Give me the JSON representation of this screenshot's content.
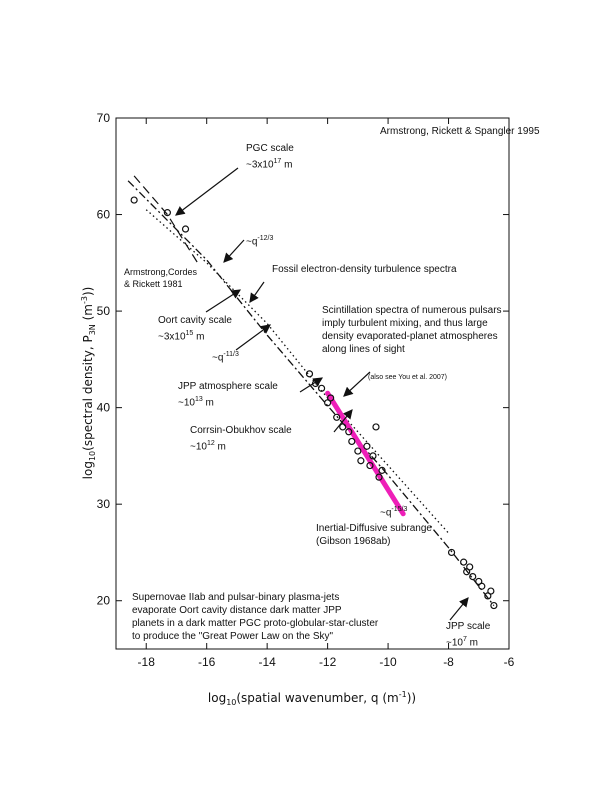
{
  "chart_data": {
    "type": "scatter",
    "title": "",
    "xlabel": "log10(spatial wavenumber, q (m^-1))",
    "ylabel": "log10(spectral density, P3N (m^-3))",
    "xlim": [
      -19,
      -6
    ],
    "ylim": [
      15,
      70
    ],
    "x_ticks": [
      -18,
      -16,
      -14,
      -12,
      -10,
      -8,
      -6
    ],
    "y_ticks": [
      20,
      30,
      40,
      50,
      60,
      70
    ],
    "grid": false,
    "series": [
      {
        "name": "",
        "style": "dash-dot",
        "x": [
          -18.6,
          -16,
          -14,
          -12,
          -10,
          -8,
          -6.5
        ],
        "y": [
          63.5,
          55.3,
          47.5,
          40.2,
          33.0,
          25.5,
          19.5
        ]
      },
      {
        "name": "",
        "style": "dotted",
        "x": [
          -18.0,
          -16,
          -14,
          -12,
          -10,
          -8
        ],
        "y": [
          60.5,
          55.0,
          48.7,
          41.0,
          34.0,
          27.0
        ]
      },
      {
        "name": "",
        "style": "dashed",
        "x": [
          -18.4,
          -17.3,
          -16.9,
          -16.3
        ],
        "y": [
          64.0,
          60.0,
          58.0,
          55.0
        ]
      },
      {
        "name": "",
        "style": "magenta",
        "x": [
          -12.0,
          -9.5
        ],
        "y": [
          41.5,
          29.0
        ]
      },
      {
        "name": "",
        "style": "points",
        "x": [
          -18.4,
          -17.3,
          -16.7,
          -12.6,
          -12.4,
          -12.2,
          -12.0,
          -11.9,
          -11.7,
          -11.5,
          -11.3,
          -11.2,
          -11.0,
          -10.9,
          -10.6,
          -10.5,
          -10.3,
          -10.4,
          -10.7,
          -10.2,
          -7.9,
          -7.5,
          -7.4,
          -7.3,
          -7.2,
          -7.0,
          -6.9,
          -6.7,
          -6.6,
          -6.5
        ],
        "y": [
          61.5,
          60.2,
          58.5,
          43.5,
          42.5,
          42.0,
          40.5,
          41.0,
          39.0,
          38.0,
          37.5,
          36.5,
          35.5,
          34.5,
          34.0,
          35.0,
          32.8,
          38.0,
          36.0,
          33.5,
          25.0,
          24.0,
          23.0,
          23.5,
          22.5,
          22.0,
          21.5,
          20.5,
          21.0,
          19.5
        ]
      }
    ],
    "annotations": {
      "source": "Armstrong, Rickett & Spangler 1995",
      "pgc_scale": {
        "label": "PGC scale",
        "value": "~3x10",
        "exp": "17",
        "unit": " m"
      },
      "q_m12_3": {
        "base": "~q",
        "exp": "-12/3"
      },
      "armstrong_1981": [
        "Armstrong,Cordes",
        "& Rickett 1981"
      ],
      "fossil": "Fossil electron-density turbulence spectra",
      "oort_scale": {
        "label": "Oort cavity scale",
        "value": "~3x10",
        "exp": "15",
        "unit": " m"
      },
      "q_m11_3": {
        "base": "~q",
        "exp": "-11/3"
      },
      "scintillation": [
        "Scintillation spectra of numerous pulsars",
        "imply turbulent mixing, and thus large",
        "density evaporated-planet atmospheres",
        "along lines of sight"
      ],
      "jpp_atm": {
        "label": "JPP atmosphere scale",
        "value": "~10",
        "exp": "13",
        "unit": " m"
      },
      "see_you": "(also see You et al. 2007)",
      "corrsin": {
        "label": "Corrsin-Obukhov scale",
        "value": "~10",
        "exp": "12",
        "unit": " m"
      },
      "q_m15_3": {
        "base": "~q",
        "exp": "-15/3"
      },
      "inertial": [
        "Inertial-Diffusive subrange",
        "(Gibson 1968ab)"
      ],
      "supernovae": [
        "Supernovae IIab and pulsar-binary plasma-jets",
        "evaporate Oort cavity distance dark matter  JPP",
        "planets in a dark matter PGC proto-globular-star-cluster",
        "to produce the \"Great Power Law on the Sky\""
      ],
      "jpp_scale": {
        "label": "JPP scale",
        "value": "~10",
        "exp": "7",
        "unit": " m"
      }
    }
  },
  "colors": {
    "magenta": "#ee1fb8",
    "ink": "#111111"
  }
}
